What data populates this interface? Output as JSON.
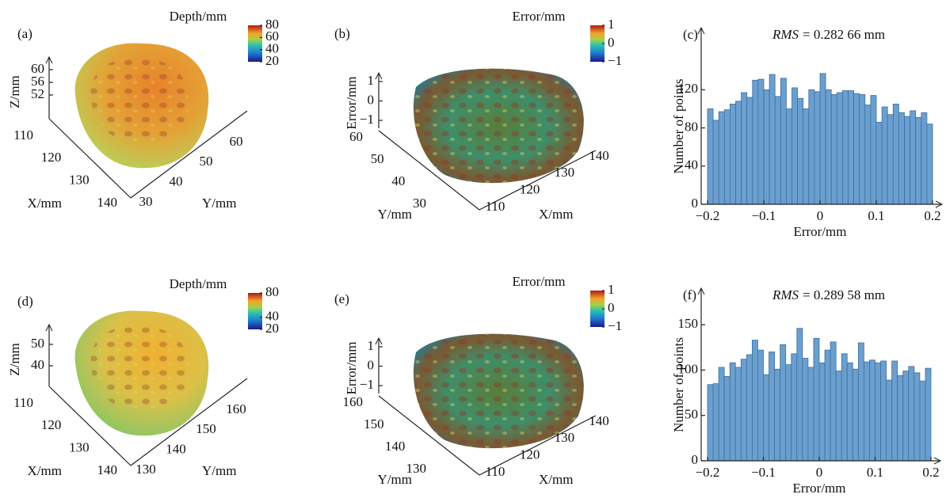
{
  "chart_data": [
    {
      "type": "surface3d",
      "panel_label": "(a)",
      "colorbar": {
        "title": "Depth/mm",
        "ticks": [
          20,
          40,
          60,
          80
        ]
      },
      "xlabel": "X/mm",
      "ylabel": "Y/mm",
      "zlabel": "Z/mm",
      "xticks": [
        110,
        120,
        130,
        140
      ],
      "yticks": [
        30,
        40,
        50,
        60
      ],
      "zticks": [
        52,
        56,
        60
      ]
    },
    {
      "type": "surface3d",
      "panel_label": "(b)",
      "colorbar": {
        "title": "Error/mm",
        "ticks": [
          {
            "value": -1,
            "label": "−1"
          },
          0,
          1
        ]
      },
      "xlabel": "X/mm",
      "ylabel": "Y/mm",
      "zlabel": "Error/mm",
      "xticks": [
        110,
        120,
        130,
        140
      ],
      "yticks": [
        30,
        40,
        50,
        60
      ],
      "zticks": [
        {
          "value": -1,
          "label": "−1"
        },
        0,
        1
      ]
    },
    {
      "type": "histogram",
      "panel_label": "(c)",
      "annotation": {
        "italic": "RMS",
        "text": "= 0.282 66 mm"
      },
      "xlabel": "Error/mm",
      "ylabel": "Number of points",
      "color": "#6a9fcf",
      "bins": [
        -0.2,
        -0.19,
        -0.18,
        -0.17,
        -0.16,
        -0.15,
        -0.14,
        -0.13,
        -0.12,
        -0.11,
        -0.1,
        -0.09,
        -0.08,
        -0.07,
        -0.06,
        -0.05,
        -0.04,
        -0.03,
        -0.02,
        -0.01,
        0,
        0.01,
        0.02,
        0.03,
        0.04,
        0.05,
        0.06,
        0.07,
        0.08,
        0.09,
        0.1,
        0.11,
        0.12,
        0.13,
        0.14,
        0.15,
        0.16,
        0.17,
        0.18,
        0.19,
        0.2
      ],
      "values": [
        100,
        88,
        97,
        99,
        105,
        108,
        117,
        112,
        130,
        131,
        120,
        136,
        113,
        132,
        100,
        122,
        111,
        100,
        120,
        118,
        137,
        120,
        115,
        117,
        119,
        119,
        116,
        115,
        104,
        114,
        86,
        102,
        94,
        105,
        96,
        92,
        98,
        91,
        96,
        84
      ],
      "xlim": [
        -0.2,
        0.2
      ],
      "ylim": [
        0,
        180
      ],
      "xticks": [
        {
          "value": -0.2,
          "label": "−0.2"
        },
        {
          "value": -0.1,
          "label": "−0.1"
        },
        0,
        0.1,
        0.2
      ],
      "yticks": [
        0,
        40,
        80,
        120
      ]
    },
    {
      "type": "surface3d",
      "panel_label": "(d)",
      "colorbar": {
        "title": "Depth/mm",
        "ticks": [
          20,
          40,
          80
        ]
      },
      "xlabel": "X/mm",
      "ylabel": "Y/mm",
      "zlabel": "Z/mm",
      "xticks": [
        110,
        120,
        130,
        140
      ],
      "yticks": [
        130,
        140,
        150,
        160
      ],
      "zticks": [
        40,
        50
      ]
    },
    {
      "type": "surface3d",
      "panel_label": "(e)",
      "colorbar": {
        "title": "Error/mm",
        "ticks": [
          {
            "value": -1,
            "label": "−1"
          },
          0,
          1
        ]
      },
      "xlabel": "X/mm",
      "ylabel": "Y/mm",
      "zlabel": "Error/mm",
      "xticks": [
        110,
        120,
        130,
        140
      ],
      "yticks": [
        130,
        140,
        150,
        160
      ],
      "zticks": [
        {
          "value": -1,
          "label": "−1"
        },
        0,
        1
      ]
    },
    {
      "type": "histogram",
      "panel_label": "(f)",
      "annotation": {
        "italic": "RMS",
        "text": "= 0.289 58 mm"
      },
      "xlabel": "Error/mm",
      "ylabel": "Number of points",
      "color": "#6a9fcf",
      "bins": [
        -0.2,
        -0.19,
        -0.18,
        -0.17,
        -0.16,
        -0.15,
        -0.14,
        -0.13,
        -0.12,
        -0.11,
        -0.1,
        -0.09,
        -0.08,
        -0.07,
        -0.06,
        -0.05,
        -0.04,
        -0.03,
        -0.02,
        -0.01,
        0,
        0.01,
        0.02,
        0.03,
        0.04,
        0.05,
        0.06,
        0.07,
        0.08,
        0.09,
        0.1,
        0.11,
        0.12,
        0.13,
        0.14,
        0.15,
        0.16,
        0.17,
        0.18,
        0.19,
        0.2
      ],
      "values": [
        84,
        85,
        103,
        93,
        108,
        103,
        112,
        117,
        133,
        122,
        95,
        120,
        101,
        128,
        106,
        118,
        146,
        113,
        103,
        135,
        108,
        122,
        131,
        99,
        118,
        108,
        101,
        130,
        109,
        111,
        108,
        110,
        89,
        110,
        94,
        99,
        104,
        97,
        88,
        102
      ],
      "xlim": [
        -0.2,
        0.2
      ],
      "ylim": [
        0,
        185
      ],
      "xticks": [
        {
          "value": -0.2,
          "label": "−0.2"
        },
        {
          "value": -0.1,
          "label": "−0.1"
        },
        0,
        0.1,
        0.2
      ],
      "yticks": [
        0,
        50,
        100,
        150
      ]
    }
  ]
}
